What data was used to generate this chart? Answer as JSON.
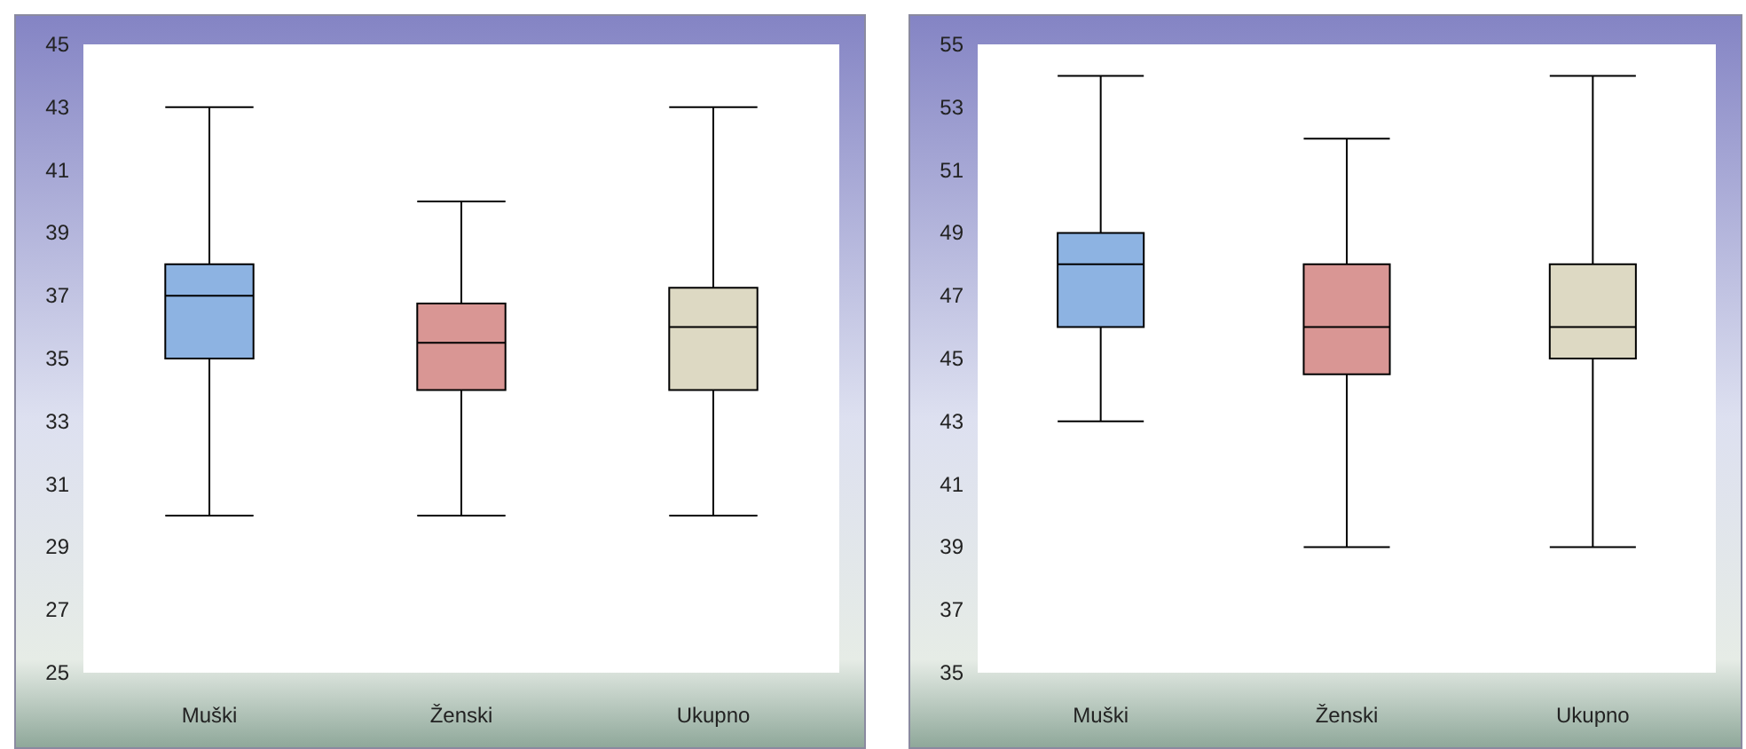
{
  "chart_data": [
    {
      "type": "box",
      "categories": [
        "Muški",
        "Ženski",
        "Ukupno"
      ],
      "colors": [
        "#8db3e2",
        "#d99694",
        "#ddd9c3"
      ],
      "ylim": [
        25,
        45
      ],
      "yticks": [
        25,
        27,
        29,
        31,
        33,
        35,
        37,
        39,
        41,
        43,
        45
      ],
      "grid": false,
      "boxes": [
        {
          "low": 30,
          "q1": 35,
          "median": 37,
          "q3": 38,
          "high": 43
        },
        {
          "low": 30,
          "q1": 34,
          "median": 35.5,
          "q3": 36.75,
          "high": 40
        },
        {
          "low": 30,
          "q1": 34,
          "median": 36,
          "q3": 37.25,
          "high": 43
        }
      ]
    },
    {
      "type": "box",
      "categories": [
        "Muški",
        "Ženski",
        "Ukupno"
      ],
      "colors": [
        "#8db3e2",
        "#d99694",
        "#ddd9c3"
      ],
      "ylim": [
        35,
        55
      ],
      "yticks": [
        35,
        37,
        39,
        41,
        43,
        45,
        47,
        49,
        51,
        53,
        55
      ],
      "grid": false,
      "boxes": [
        {
          "low": 43,
          "q1": 46,
          "median": 48,
          "q3": 49,
          "high": 54
        },
        {
          "low": 39,
          "q1": 44.5,
          "median": 46,
          "q3": 48,
          "high": 52
        },
        {
          "low": 39,
          "q1": 45,
          "median": 46,
          "q3": 48,
          "high": 54
        }
      ]
    }
  ]
}
